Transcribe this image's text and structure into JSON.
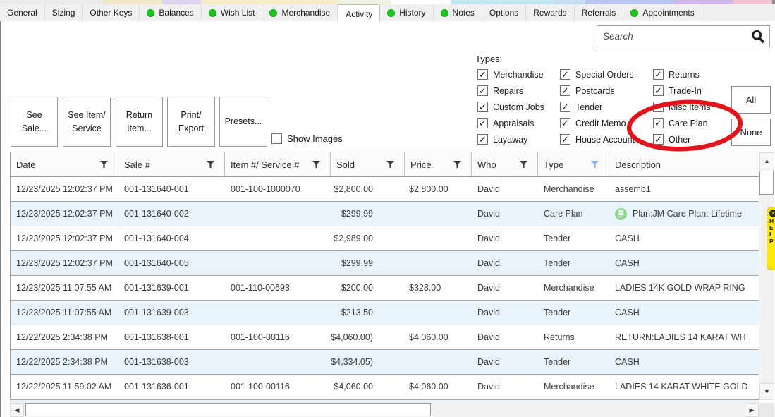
{
  "colors": {
    "status_dot_green": "#1ec41e",
    "alt_row_blue": "#e9f3fb",
    "active_filter_blue": "#85b8e8",
    "annotation_red": "#e0151c",
    "help_tab_yellow": "#ffe70c",
    "care_plan_icon_green": "#8edb8e"
  },
  "tabs": [
    {
      "label": "General",
      "dot": false,
      "active": false
    },
    {
      "label": "Sizing",
      "dot": false,
      "active": false
    },
    {
      "label": "Other Keys",
      "dot": false,
      "active": false
    },
    {
      "label": "Balances",
      "dot": true,
      "active": false
    },
    {
      "label": "Wish List",
      "dot": true,
      "active": false
    },
    {
      "label": "Merchandise",
      "dot": true,
      "active": false
    },
    {
      "label": "Activity",
      "dot": false,
      "active": true
    },
    {
      "label": "History",
      "dot": true,
      "active": false
    },
    {
      "label": "Notes",
      "dot": true,
      "active": false
    },
    {
      "label": "Options",
      "dot": false,
      "active": false
    },
    {
      "label": "Rewards",
      "dot": false,
      "active": false
    },
    {
      "label": "Referrals",
      "dot": false,
      "active": false
    },
    {
      "label": "Appointments",
      "dot": true,
      "active": false
    }
  ],
  "search": {
    "placeholder": "Search"
  },
  "types": {
    "heading": "Types:",
    "columns": [
      [
        "Merchandise",
        "Repairs",
        "Custom Jobs",
        "Appraisals",
        "Layaway"
      ],
      [
        "Special Orders",
        "Postcards",
        "Tender",
        "Credit Memo",
        "House Account"
      ],
      [
        "Returns",
        "Trade-In",
        "Misc Items",
        "Care Plan",
        "Other"
      ]
    ],
    "all_checked": true,
    "all_button": "All",
    "none_button": "None"
  },
  "toolbar": {
    "buttons": [
      "See\nSale...",
      "See Item/\nService",
      "Return\nItem...",
      "Print/\nExport",
      "Presets..."
    ],
    "show_images_label": "Show Images",
    "show_images_checked": false
  },
  "table": {
    "columns": [
      "Date",
      "Sale #",
      "Item #/ Service #",
      "Sold",
      "Price",
      "Who",
      "Type",
      "Description"
    ],
    "active_filter_column": "Type",
    "rows": [
      {
        "date": "12/23/2025 12:02:37 PM",
        "sale": "001-131640-001",
        "item": "001-100-1000070",
        "sold": "$2,800.00",
        "price": "$2,800.00",
        "who": "David",
        "type": "Merchandise",
        "desc": "assemb1",
        "desc_icon": false
      },
      {
        "date": "12/23/2025 12:02:37 PM",
        "sale": "001-131640-002",
        "item": "",
        "sold": "$299.99",
        "price": "",
        "who": "David",
        "type": "Care Plan",
        "desc": "Plan:JM Care Plan: Lifetime",
        "desc_icon": true
      },
      {
        "date": "12/23/2025 12:02:37 PM",
        "sale": "001-131640-004",
        "item": "",
        "sold": "$2,989.00",
        "price": "",
        "who": "David",
        "type": "Tender",
        "desc": "CASH",
        "desc_icon": false
      },
      {
        "date": "12/23/2025 12:02:37 PM",
        "sale": "001-131640-005",
        "item": "",
        "sold": "$299.99",
        "price": "",
        "who": "David",
        "type": "Tender",
        "desc": "CASH",
        "desc_icon": false
      },
      {
        "date": "12/23/2025 11:07:55 AM",
        "sale": "001-131639-001",
        "item": "001-110-00693",
        "sold": "$200.00",
        "price": "$328.00",
        "who": "David",
        "type": "Merchandise",
        "desc": "LADIES 14K GOLD WRAP RING",
        "desc_icon": false
      },
      {
        "date": "12/23/2025 11:07:55 AM",
        "sale": "001-131639-003",
        "item": "",
        "sold": "$213.50",
        "price": "",
        "who": "David",
        "type": "Tender",
        "desc": "CASH",
        "desc_icon": false
      },
      {
        "date": "12/22/2025 2:34:38 PM",
        "sale": "001-131638-001",
        "item": "001-100-00116",
        "sold": "($4,060.00)",
        "price": "$4,060.00",
        "who": "David",
        "type": "Returns",
        "desc": "RETURN:LADIES 14 KARAT WH",
        "desc_icon": false
      },
      {
        "date": "12/22/2025 2:34:38 PM",
        "sale": "001-131638-003",
        "item": "",
        "sold": "($4,334.05)",
        "price": "",
        "who": "David",
        "type": "Tender",
        "desc": "CASH",
        "desc_icon": false
      },
      {
        "date": "12/22/2025 11:59:02 AM",
        "sale": "001-131636-001",
        "item": "001-100-00116",
        "sold": "$4,060.00",
        "price": "$4,060.00",
        "who": "David",
        "type": "Merchandise",
        "desc": "LADIES 14 KARAT WHITE GOLD",
        "desc_icon": false
      }
    ]
  },
  "help_tab": {
    "label": "HELP"
  },
  "icons": {
    "checkmark": "✓",
    "search": "magnifying-glass",
    "filter": "funnel",
    "scroll_up": "▲",
    "scroll_down": "▼",
    "scroll_left": "◀",
    "scroll_right": "▶",
    "help_close": "✕"
  }
}
